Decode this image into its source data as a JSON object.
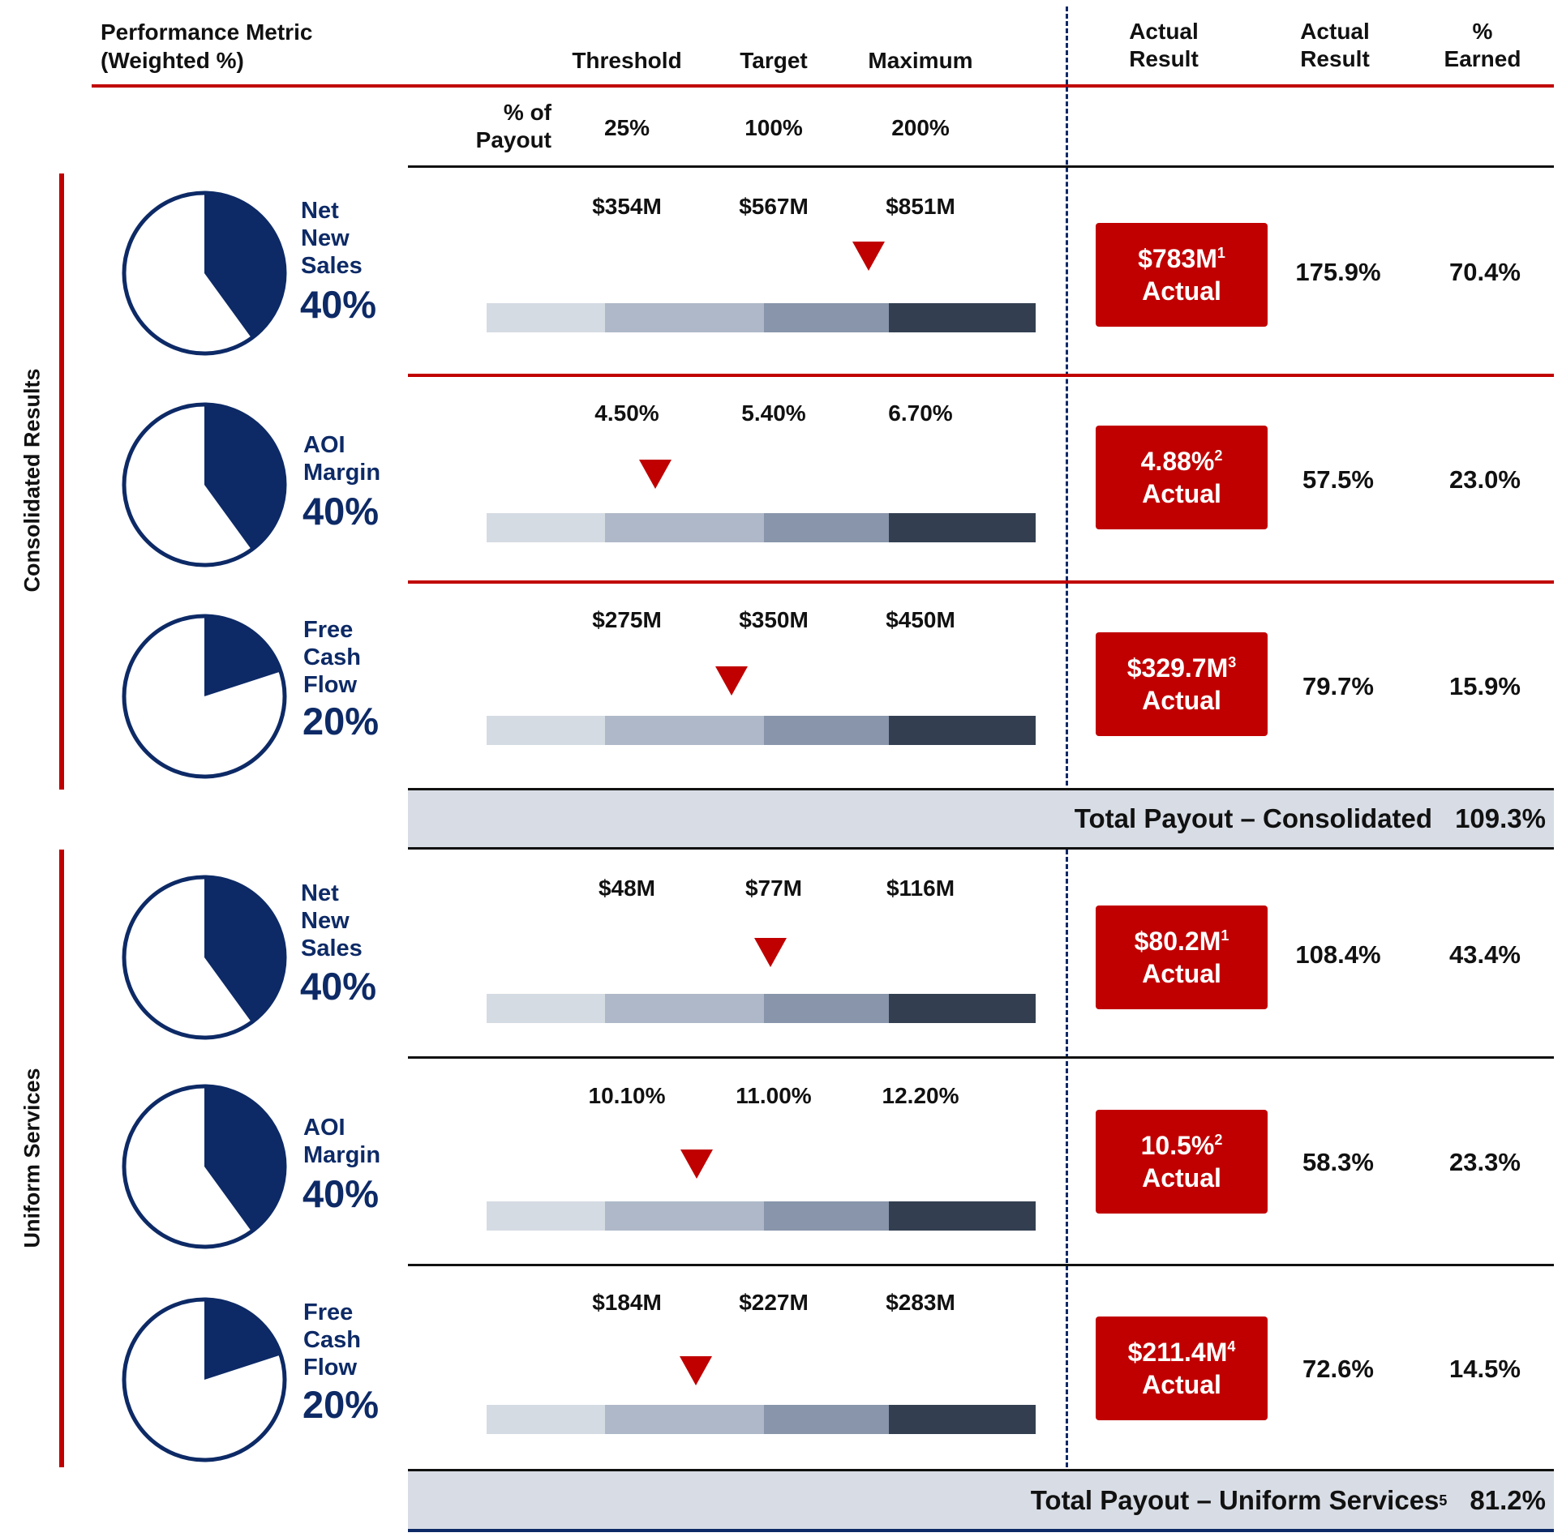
{
  "header": {
    "metric_title_line1": "Performance Metric",
    "metric_title_line2": "(Weighted %)",
    "threshold": "Threshold",
    "target": "Target",
    "maximum": "Maximum",
    "actual_result_1_line1": "Actual",
    "actual_result_1_line2": "Result",
    "actual_result_2_line1": "Actual",
    "actual_result_2_line2": "Result",
    "earned_line1": "%",
    "earned_line2": "Earned"
  },
  "payout_row": {
    "label_line1": "% of",
    "label_line2": "Payout",
    "threshold": "25%",
    "target": "100%",
    "maximum": "200%"
  },
  "colors": {
    "red": "#c00000",
    "navy": "#0d2a66",
    "bar_segments": [
      "#d5dbe3",
      "#aeb8c8",
      "#8895ab",
      "#333f51"
    ],
    "total_band": "#d8dde5"
  },
  "sections": [
    {
      "label": "Consolidated Results",
      "rows": [
        {
          "name": "Net\nNew\nSales",
          "weight": "40%",
          "weight_fraction": 0.4,
          "threshold": "$354M",
          "target": "$567M",
          "maximum": "$851M",
          "actual": "$783M",
          "actual_note": "1",
          "actual_word": "Actual",
          "actual_result": "175.9%",
          "earned": "70.4%"
        },
        {
          "name": "AOI\nMargin",
          "weight": "40%",
          "weight_fraction": 0.4,
          "threshold": "4.50%",
          "target": "5.40%",
          "maximum": "6.70%",
          "actual": "4.88%",
          "actual_note": "2",
          "actual_word": "Actual",
          "actual_result": "57.5%",
          "earned": "23.0%"
        },
        {
          "name": "Free\nCash\nFlow",
          "weight": "20%",
          "weight_fraction": 0.2,
          "threshold": "$275M",
          "target": "$350M",
          "maximum": "$450M",
          "actual": "$329.7M",
          "actual_note": "3",
          "actual_word": "Actual",
          "actual_result": "79.7%",
          "earned": "15.9%"
        }
      ],
      "total_label": "Total Payout – Consolidated",
      "total_note": "",
      "total_value": "109.3%"
    },
    {
      "label": "Uniform Services",
      "rows": [
        {
          "name": "Net\nNew\nSales",
          "weight": "40%",
          "weight_fraction": 0.4,
          "threshold": "$48M",
          "target": "$77M",
          "maximum": "$116M",
          "actual": "$80.2M",
          "actual_note": "1",
          "actual_word": "Actual",
          "actual_result": "108.4%",
          "earned": "43.4%"
        },
        {
          "name": "AOI\nMargin",
          "weight": "40%",
          "weight_fraction": 0.4,
          "threshold": "10.10%",
          "target": "11.00%",
          "maximum": "12.20%",
          "actual": "10.5%",
          "actual_note": "2",
          "actual_word": "Actual",
          "actual_result": "58.3%",
          "earned": "23.3%"
        },
        {
          "name": "Free\nCash\nFlow",
          "weight": "20%",
          "weight_fraction": 0.2,
          "threshold": "$184M",
          "target": "$227M",
          "maximum": "$283M",
          "actual": "$211.4M",
          "actual_note": "4",
          "actual_word": "Actual",
          "actual_result": "72.6%",
          "earned": "14.5%"
        }
      ],
      "total_label": "Total Payout – Uniform Services",
      "total_note": "5",
      "total_value": "81.2%"
    }
  ]
}
